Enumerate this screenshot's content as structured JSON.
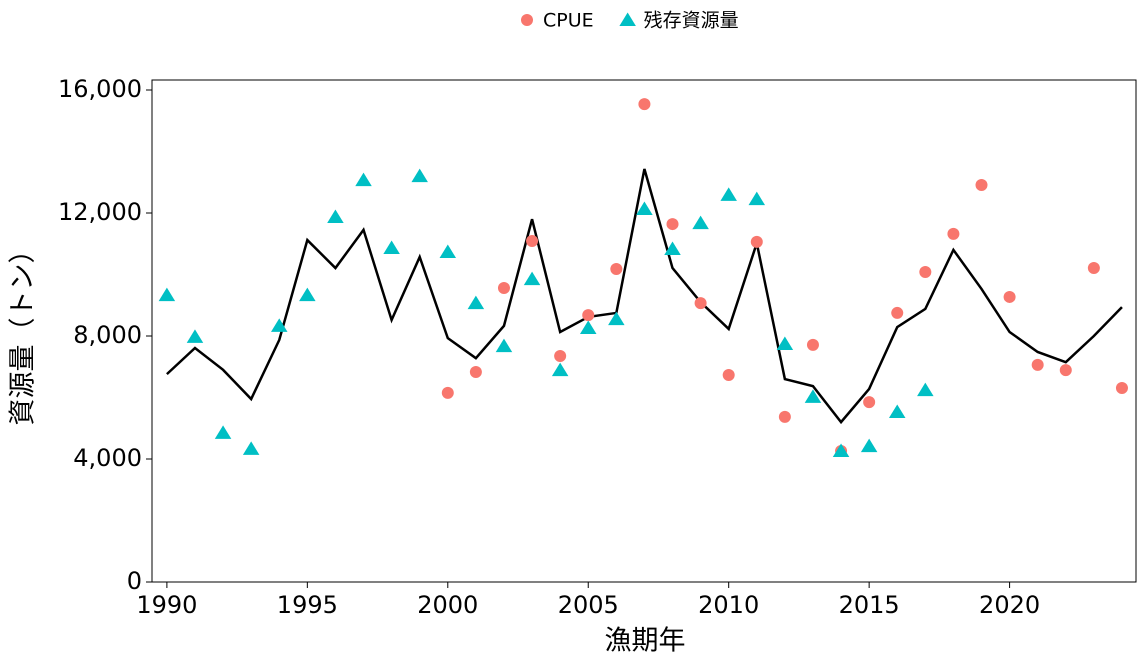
{
  "chart_data": {
    "type": "line",
    "x_label": "漁期年",
    "y_label": "資源量（トン）",
    "x": [
      1990,
      1991,
      1992,
      1993,
      1994,
      1995,
      1996,
      1997,
      1998,
      1999,
      2000,
      2001,
      2002,
      2003,
      2004,
      2005,
      2006,
      2007,
      2008,
      2009,
      2010,
      2011,
      2012,
      2013,
      2014,
      2015,
      2016,
      2017,
      2018,
      2019,
      2020,
      2021,
      2022,
      2023,
      2024
    ],
    "series": [
      {
        "marker": "line",
        "color": "#000000",
        "values": [
          6760,
          7610,
          6900,
          5950,
          7870,
          11120,
          10210,
          11450,
          8520,
          10570,
          7930,
          7280,
          8330,
          11800,
          8130,
          8620,
          8750,
          13430,
          10210,
          9100,
          8230,
          11020,
          6600,
          6370,
          5200,
          6280,
          8290,
          8880,
          10800,
          9530,
          8130,
          7480,
          7150,
          8000,
          8940
        ]
      },
      {
        "name": "CPUE",
        "marker": "circle",
        "color": "#F8766D",
        "values": [
          null,
          null,
          null,
          null,
          null,
          null,
          null,
          null,
          null,
          null,
          6150,
          6830,
          9560,
          11090,
          7350,
          8680,
          10180,
          15540,
          11640,
          9070,
          6730,
          11060,
          5370,
          7710,
          4260,
          5850,
          8750,
          10080,
          11320,
          12910,
          9270,
          7060,
          6890,
          10210,
          6310
        ]
      },
      {
        "name": "残存資源量",
        "marker": "triangle",
        "color": "#00BFC4",
        "values": [
          9330,
          7970,
          4850,
          4330,
          8330,
          9330,
          11870,
          13070,
          10860,
          13200,
          10730,
          9070,
          7670,
          9850,
          6890,
          8260,
          8550,
          12130,
          10830,
          11670,
          12590,
          12450,
          7740,
          6020,
          4260,
          4420,
          5530,
          6240,
          null,
          null,
          null,
          null,
          null,
          null,
          null
        ]
      }
    ],
    "xlim": [
      1989.47,
      2024.5
    ],
    "ylim": [
      0,
      16325
    ],
    "xticks": [
      1990,
      1995,
      2000,
      2005,
      2010,
      2015,
      2020
    ],
    "yticks": [
      0,
      {
        "value": 4000,
        "label": "4,000"
      },
      {
        "value": 8000,
        "label": "8,000"
      },
      {
        "value": 12000,
        "label": "12,000"
      },
      {
        "value": 16000,
        "label": "16,000"
      }
    ],
    "legend": "top"
  }
}
